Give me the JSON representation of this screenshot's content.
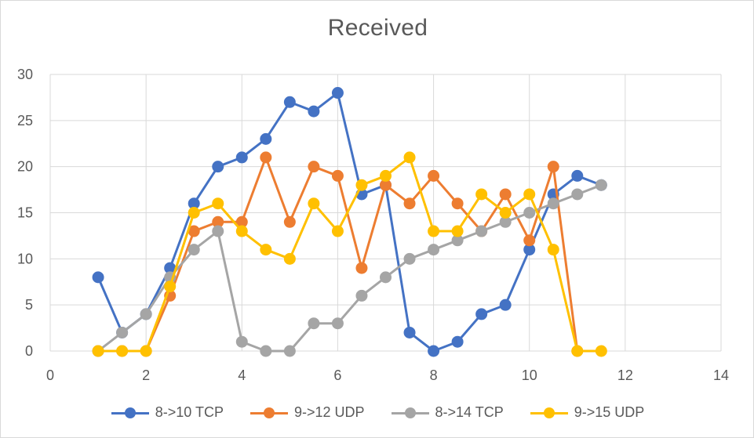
{
  "chart_data": {
    "type": "scatter",
    "title": "Received",
    "xlabel": "",
    "ylabel": "",
    "xlim": [
      0,
      14
    ],
    "ylim": [
      0,
      30
    ],
    "xticks": [
      0,
      2,
      4,
      6,
      8,
      10,
      12,
      14
    ],
    "yticks": [
      0,
      5,
      10,
      15,
      20,
      25,
      30
    ],
    "grid": true,
    "legend_position": "bottom",
    "series": [
      {
        "name": "8->10 TCP",
        "color": "#4472c4",
        "points": [
          [
            1,
            8
          ],
          [
            1.5,
            2
          ],
          [
            2,
            4
          ],
          [
            2.5,
            9
          ],
          [
            3,
            16
          ],
          [
            3.5,
            20
          ],
          [
            4,
            21
          ],
          [
            4.5,
            23
          ],
          [
            5,
            27
          ],
          [
            5.5,
            26
          ],
          [
            6,
            28
          ],
          [
            6.5,
            17
          ],
          [
            7,
            18
          ],
          [
            7.5,
            2
          ],
          [
            8,
            0
          ],
          [
            8.5,
            1
          ],
          [
            9,
            4
          ],
          [
            9.5,
            5
          ],
          [
            10,
            11
          ],
          [
            10.5,
            17
          ],
          [
            11,
            19
          ],
          [
            11.5,
            18
          ]
        ]
      },
      {
        "name": "9->12 UDP",
        "color": "#ed7d31",
        "points": [
          [
            1,
            0
          ],
          [
            1.5,
            0
          ],
          [
            2,
            0
          ],
          [
            2.5,
            6
          ],
          [
            3,
            13
          ],
          [
            3.5,
            14
          ],
          [
            4,
            14
          ],
          [
            4.5,
            21
          ],
          [
            5,
            14
          ],
          [
            5.5,
            20
          ],
          [
            6,
            19
          ],
          [
            6.5,
            9
          ],
          [
            7,
            18
          ],
          [
            7.5,
            16
          ],
          [
            8,
            19
          ],
          [
            8.5,
            16
          ],
          [
            9,
            13
          ],
          [
            9.5,
            17
          ],
          [
            10,
            12
          ],
          [
            10.5,
            20
          ],
          [
            11,
            0
          ]
        ]
      },
      {
        "name": "8->14 TCP",
        "color": "#a5a5a5",
        "points": [
          [
            1,
            0
          ],
          [
            1.5,
            2
          ],
          [
            2,
            4
          ],
          [
            2.5,
            8
          ],
          [
            3,
            11
          ],
          [
            3.5,
            13
          ],
          [
            4,
            1
          ],
          [
            4.5,
            0
          ],
          [
            5,
            0
          ],
          [
            5.5,
            3
          ],
          [
            6,
            3
          ],
          [
            6.5,
            6
          ],
          [
            7,
            8
          ],
          [
            7.5,
            10
          ],
          [
            8,
            11
          ],
          [
            8.5,
            12
          ],
          [
            9,
            13
          ],
          [
            9.5,
            14
          ],
          [
            10,
            15
          ],
          [
            10.5,
            16
          ],
          [
            11,
            17
          ],
          [
            11.5,
            18
          ]
        ]
      },
      {
        "name": "9->15 UDP",
        "color": "#ffc000",
        "points": [
          [
            1,
            0
          ],
          [
            1.5,
            0
          ],
          [
            2,
            0
          ],
          [
            2.5,
            7
          ],
          [
            3,
            15
          ],
          [
            3.5,
            16
          ],
          [
            4,
            13
          ],
          [
            4.5,
            11
          ],
          [
            5,
            10
          ],
          [
            5.5,
            16
          ],
          [
            6,
            13
          ],
          [
            6.5,
            18
          ],
          [
            7,
            19
          ],
          [
            7.5,
            21
          ],
          [
            8,
            13
          ],
          [
            8.5,
            13
          ],
          [
            9,
            17
          ],
          [
            9.5,
            15
          ],
          [
            10,
            17
          ],
          [
            10.5,
            11
          ],
          [
            11,
            0
          ],
          [
            11.5,
            0
          ]
        ]
      }
    ]
  }
}
